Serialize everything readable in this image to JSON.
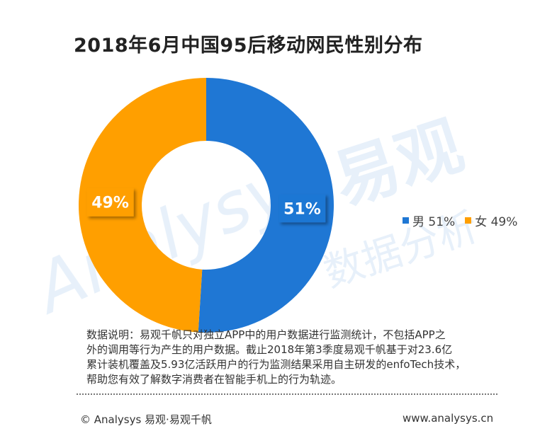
{
  "title": "2018年6月中国95后移动网民性别分布",
  "chart_data": {
    "type": "pie",
    "variant": "donut",
    "categories": [
      "男",
      "女"
    ],
    "values": [
      51,
      49
    ],
    "data_labels": [
      "51%",
      "49%"
    ],
    "legend_entries": [
      "男 51%",
      "女 49%"
    ],
    "legend_position": "right",
    "colors": [
      "#1f77d4",
      "#ff9f00"
    ]
  },
  "watermark": {
    "brand_en": "Analysys",
    "brand_cn": "易观",
    "tagline": "数据分析"
  },
  "note": {
    "lines": [
      "数据说明：易观千帆只对独立APP中的用户数据进行监测统计，不包括APP之",
      "外的调用等行为产生的用户数据。截止2018年第3季度易观千帆基于对23.6亿",
      "累计装机覆盖及5.93亿活跃用户的行为监测结果采用自主研发的enfoTech技术，",
      "帮助您有效了解数字消费者在智能手机上的行为轨迹。"
    ]
  },
  "footer": {
    "left": "© Analysys 易观·易观千帆",
    "right": "www.analysys.cn"
  }
}
